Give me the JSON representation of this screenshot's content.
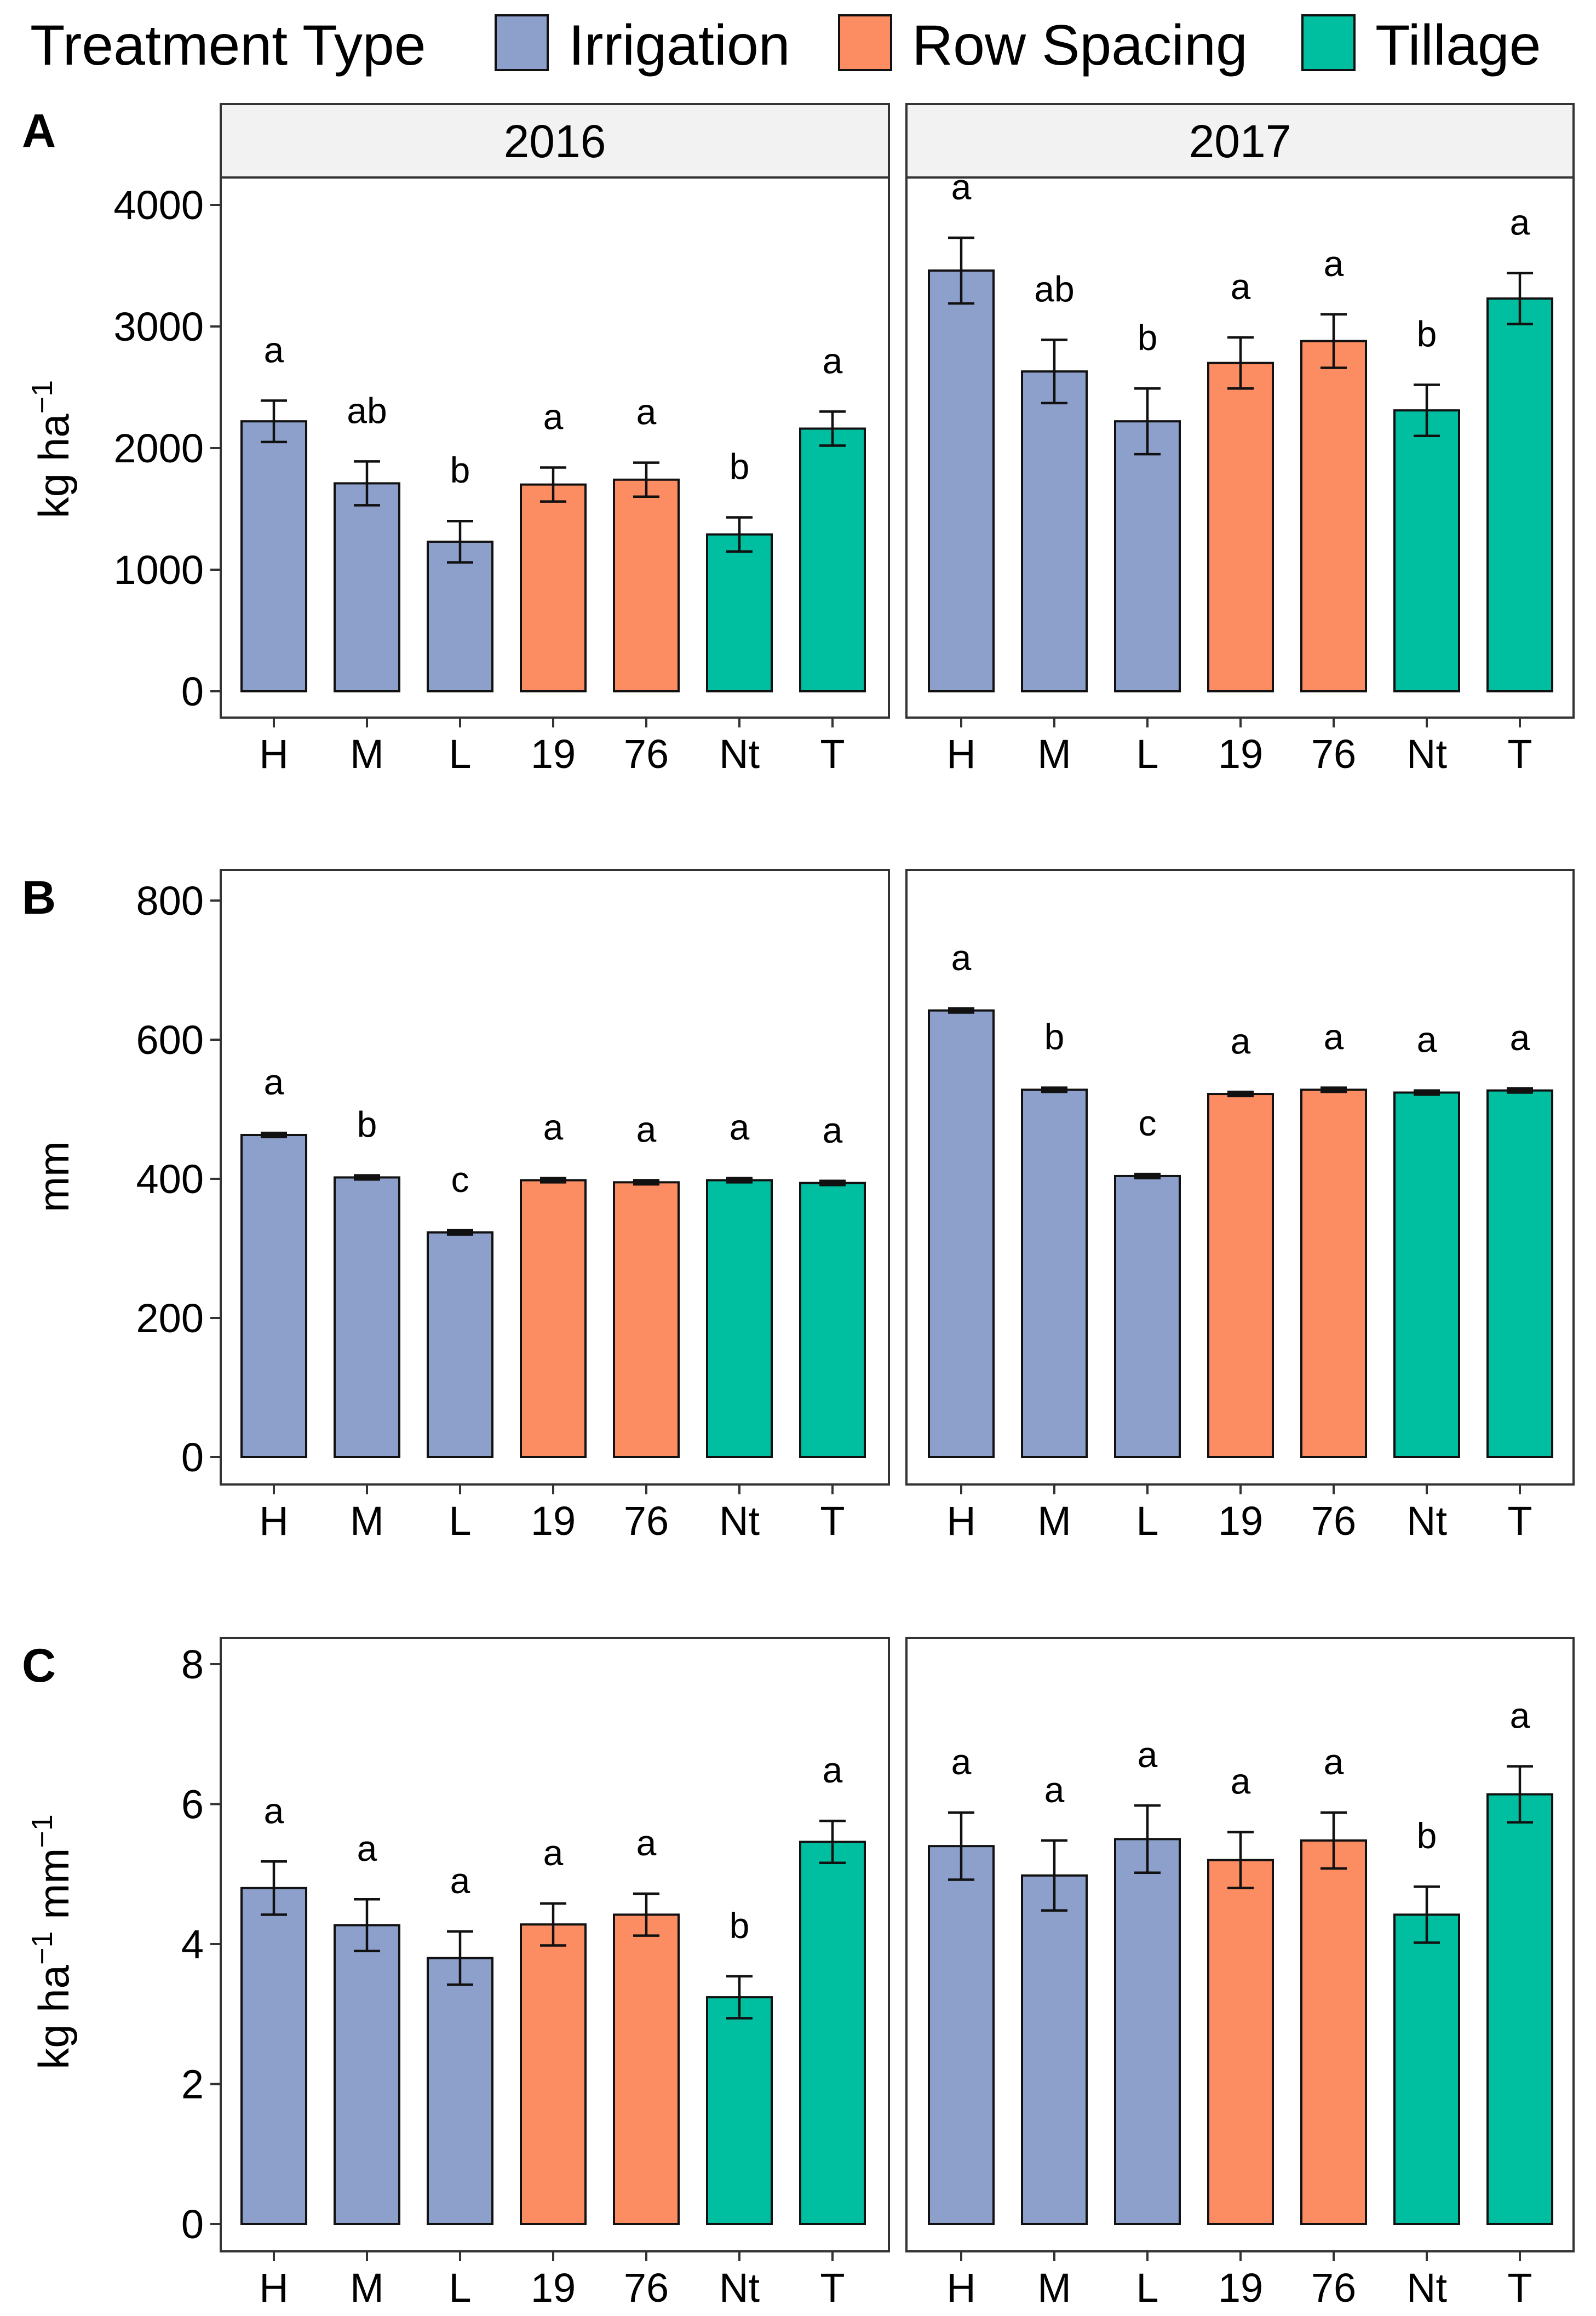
{
  "chart_data": {
    "type": "bar",
    "legend": {
      "title": "Treatment Type",
      "position": "top",
      "entries": [
        {
          "name": "Irrigation",
          "color": "#8DA0CB"
        },
        {
          "name": "Row Spacing",
          "color": "#FC8D62"
        },
        {
          "name": "Tillage",
          "color": "#00BFA0"
        }
      ]
    },
    "categories": [
      "H",
      "M",
      "L",
      "19",
      "76",
      "Nt",
      "T"
    ],
    "category_group": [
      "Irrigation",
      "Irrigation",
      "Irrigation",
      "Row Spacing",
      "Row Spacing",
      "Tillage",
      "Tillage"
    ],
    "facets": [
      "2016",
      "2017"
    ],
    "panels": [
      {
        "letter": "A",
        "ylabel": "kg ha",
        "ylabel_sup": "−1",
        "ylim": [
          0,
          4200
        ],
        "yticks": [
          0,
          1000,
          2000,
          3000,
          4000
        ],
        "ytick_labels": [
          "0",
          "1000",
          "2000",
          "3000",
          "4000"
        ],
        "series": [
          {
            "name": "2016",
            "values": [
              2220,
              1710,
              1230,
              1700,
              1740,
              1290,
              2160
            ],
            "errors": [
              170,
              180,
              170,
              140,
              140,
              140,
              140
            ],
            "labels": [
              "a",
              "ab",
              "b",
              "a",
              "a",
              "b",
              "a"
            ]
          },
          {
            "name": "2017",
            "values": [
              3460,
              2630,
              2220,
              2700,
              2880,
              2310,
              3230
            ],
            "errors": [
              270,
              260,
              270,
              210,
              220,
              210,
              210
            ],
            "labels": [
              "a",
              "ab",
              "b",
              "a",
              "a",
              "b",
              "a"
            ]
          }
        ]
      },
      {
        "letter": "B",
        "ylabel": "mm",
        "ylabel_sup": "",
        "ylim": [
          0,
          840
        ],
        "yticks": [
          0,
          200,
          400,
          600,
          800
        ],
        "ytick_labels": [
          "0",
          "200",
          "400",
          "600",
          "800"
        ],
        "series": [
          {
            "name": "2016",
            "values": [
              463,
              402,
              323,
              398,
              395,
              398,
              394
            ],
            "errors": [
              3,
              3,
              3,
              3,
              3,
              3,
              3
            ],
            "labels": [
              "a",
              "b",
              "c",
              "a",
              "a",
              "a",
              "a"
            ]
          },
          {
            "name": "2017",
            "values": [
              642,
              528,
              404,
              522,
              528,
              524,
              527
            ],
            "errors": [
              3,
              3,
              3,
              3,
              3,
              3,
              3
            ],
            "labels": [
              "a",
              "b",
              "c",
              "a",
              "a",
              "a",
              "a"
            ]
          }
        ]
      },
      {
        "letter": "C",
        "ylabel": "kg ha",
        "ylabel_sup": "−1",
        "ylabel_unit2": " mm",
        "ylabel_sup2": "−1",
        "ylim": [
          0,
          8.4
        ],
        "yticks": [
          0,
          2,
          4,
          6,
          8
        ],
        "ytick_labels": [
          "0",
          "2",
          "4",
          "6",
          "8"
        ],
        "series": [
          {
            "name": "2016",
            "values": [
              4.8,
              4.27,
              3.8,
              4.28,
              4.42,
              3.24,
              5.46
            ],
            "errors": [
              0.38,
              0.37,
              0.38,
              0.3,
              0.3,
              0.3,
              0.3
            ],
            "labels": [
              "a",
              "a",
              "a",
              "a",
              "a",
              "b",
              "a"
            ]
          },
          {
            "name": "2017",
            "values": [
              5.4,
              4.98,
              5.5,
              5.2,
              5.48,
              4.42,
              6.14
            ],
            "errors": [
              0.48,
              0.5,
              0.48,
              0.4,
              0.4,
              0.4,
              0.4
            ],
            "labels": [
              "a",
              "a",
              "a",
              "a",
              "a",
              "b",
              "a"
            ]
          }
        ]
      }
    ]
  }
}
